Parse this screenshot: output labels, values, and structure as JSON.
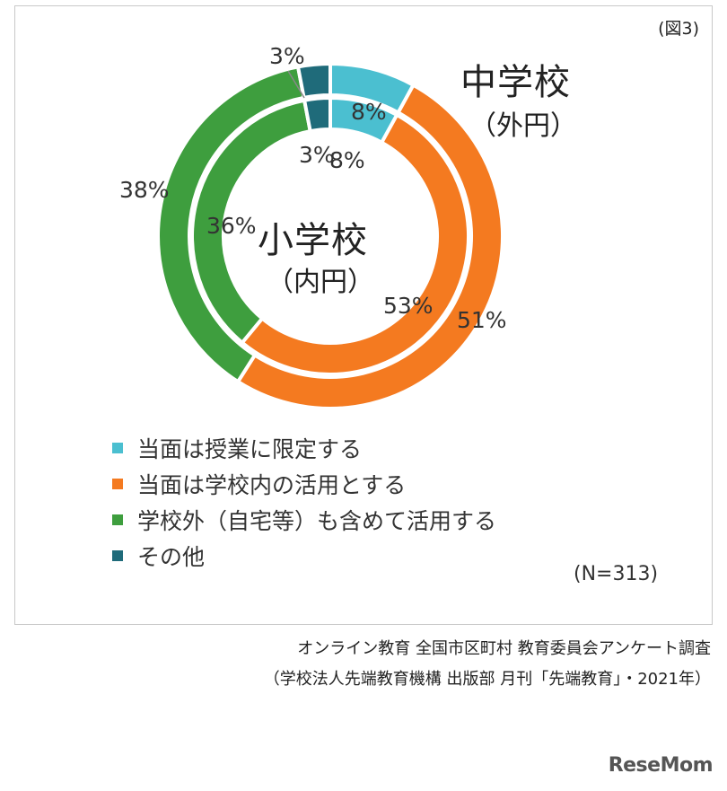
{
  "figure_label": "(図3)",
  "outer_title": "中学校",
  "outer_subtitle": "（外円）",
  "inner_title": "小学校",
  "inner_subtitle": "（内円）",
  "n_label": "(N=313)",
  "source_line1": "オンライン教育 全国市区町村 教育委員会アンケート調査",
  "source_line2": "（学校法人先端教育機構 出版部 月刊「先端教育」・2021年）",
  "logo_text": "ReseMom",
  "chart_data": {
    "type": "pie",
    "categories": [
      "当面は授業に限定する",
      "当面は学校内の活用とする",
      "学校外（自宅等）も含めて活用する",
      "その他"
    ],
    "colors": [
      "#4bbfd0",
      "#f47a20",
      "#3e9e3e",
      "#1f6b7a"
    ],
    "series": [
      {
        "name": "中学校",
        "values": [
          8,
          51,
          38,
          3
        ],
        "labels": [
          "8%",
          "51%",
          "38%",
          "3%"
        ]
      },
      {
        "name": "小学校",
        "values": [
          8,
          53,
          36,
          3
        ],
        "labels": [
          "8%",
          "53%",
          "36%",
          "3%"
        ]
      }
    ],
    "legend_position": "bottom-left"
  }
}
